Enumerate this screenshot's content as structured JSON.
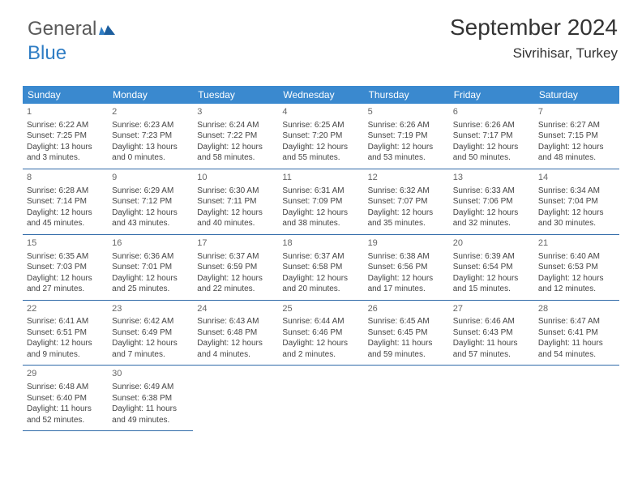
{
  "brand": {
    "word1": "General",
    "word2": "Blue"
  },
  "title": "September 2024",
  "location": "Sivrihisar, Turkey",
  "colors": {
    "header_bg": "#3a89cf",
    "header_text": "#ffffff",
    "cell_border": "#2f6aa8",
    "body_text": "#444444",
    "daynum_text": "#666666",
    "brand_gray": "#5a5a5a",
    "brand_blue": "#2f7dc4",
    "background": "#ffffff"
  },
  "day_headers": [
    "Sunday",
    "Monday",
    "Tuesday",
    "Wednesday",
    "Thursday",
    "Friday",
    "Saturday"
  ],
  "weeks": [
    [
      {
        "n": "1",
        "sr": "6:22 AM",
        "ss": "7:25 PM",
        "dl": "13 hours and 3 minutes."
      },
      {
        "n": "2",
        "sr": "6:23 AM",
        "ss": "7:23 PM",
        "dl": "13 hours and 0 minutes."
      },
      {
        "n": "3",
        "sr": "6:24 AM",
        "ss": "7:22 PM",
        "dl": "12 hours and 58 minutes."
      },
      {
        "n": "4",
        "sr": "6:25 AM",
        "ss": "7:20 PM",
        "dl": "12 hours and 55 minutes."
      },
      {
        "n": "5",
        "sr": "6:26 AM",
        "ss": "7:19 PM",
        "dl": "12 hours and 53 minutes."
      },
      {
        "n": "6",
        "sr": "6:26 AM",
        "ss": "7:17 PM",
        "dl": "12 hours and 50 minutes."
      },
      {
        "n": "7",
        "sr": "6:27 AM",
        "ss": "7:15 PM",
        "dl": "12 hours and 48 minutes."
      }
    ],
    [
      {
        "n": "8",
        "sr": "6:28 AM",
        "ss": "7:14 PM",
        "dl": "12 hours and 45 minutes."
      },
      {
        "n": "9",
        "sr": "6:29 AM",
        "ss": "7:12 PM",
        "dl": "12 hours and 43 minutes."
      },
      {
        "n": "10",
        "sr": "6:30 AM",
        "ss": "7:11 PM",
        "dl": "12 hours and 40 minutes."
      },
      {
        "n": "11",
        "sr": "6:31 AM",
        "ss": "7:09 PM",
        "dl": "12 hours and 38 minutes."
      },
      {
        "n": "12",
        "sr": "6:32 AM",
        "ss": "7:07 PM",
        "dl": "12 hours and 35 minutes."
      },
      {
        "n": "13",
        "sr": "6:33 AM",
        "ss": "7:06 PM",
        "dl": "12 hours and 32 minutes."
      },
      {
        "n": "14",
        "sr": "6:34 AM",
        "ss": "7:04 PM",
        "dl": "12 hours and 30 minutes."
      }
    ],
    [
      {
        "n": "15",
        "sr": "6:35 AM",
        "ss": "7:03 PM",
        "dl": "12 hours and 27 minutes."
      },
      {
        "n": "16",
        "sr": "6:36 AM",
        "ss": "7:01 PM",
        "dl": "12 hours and 25 minutes."
      },
      {
        "n": "17",
        "sr": "6:37 AM",
        "ss": "6:59 PM",
        "dl": "12 hours and 22 minutes."
      },
      {
        "n": "18",
        "sr": "6:37 AM",
        "ss": "6:58 PM",
        "dl": "12 hours and 20 minutes."
      },
      {
        "n": "19",
        "sr": "6:38 AM",
        "ss": "6:56 PM",
        "dl": "12 hours and 17 minutes."
      },
      {
        "n": "20",
        "sr": "6:39 AM",
        "ss": "6:54 PM",
        "dl": "12 hours and 15 minutes."
      },
      {
        "n": "21",
        "sr": "6:40 AM",
        "ss": "6:53 PM",
        "dl": "12 hours and 12 minutes."
      }
    ],
    [
      {
        "n": "22",
        "sr": "6:41 AM",
        "ss": "6:51 PM",
        "dl": "12 hours and 9 minutes."
      },
      {
        "n": "23",
        "sr": "6:42 AM",
        "ss": "6:49 PM",
        "dl": "12 hours and 7 minutes."
      },
      {
        "n": "24",
        "sr": "6:43 AM",
        "ss": "6:48 PM",
        "dl": "12 hours and 4 minutes."
      },
      {
        "n": "25",
        "sr": "6:44 AM",
        "ss": "6:46 PM",
        "dl": "12 hours and 2 minutes."
      },
      {
        "n": "26",
        "sr": "6:45 AM",
        "ss": "6:45 PM",
        "dl": "11 hours and 59 minutes."
      },
      {
        "n": "27",
        "sr": "6:46 AM",
        "ss": "6:43 PM",
        "dl": "11 hours and 57 minutes."
      },
      {
        "n": "28",
        "sr": "6:47 AM",
        "ss": "6:41 PM",
        "dl": "11 hours and 54 minutes."
      }
    ],
    [
      {
        "n": "29",
        "sr": "6:48 AM",
        "ss": "6:40 PM",
        "dl": "11 hours and 52 minutes."
      },
      {
        "n": "30",
        "sr": "6:49 AM",
        "ss": "6:38 PM",
        "dl": "11 hours and 49 minutes."
      },
      null,
      null,
      null,
      null,
      null
    ]
  ],
  "labels": {
    "sunrise": "Sunrise:",
    "sunset": "Sunset:",
    "daylight": "Daylight:"
  }
}
